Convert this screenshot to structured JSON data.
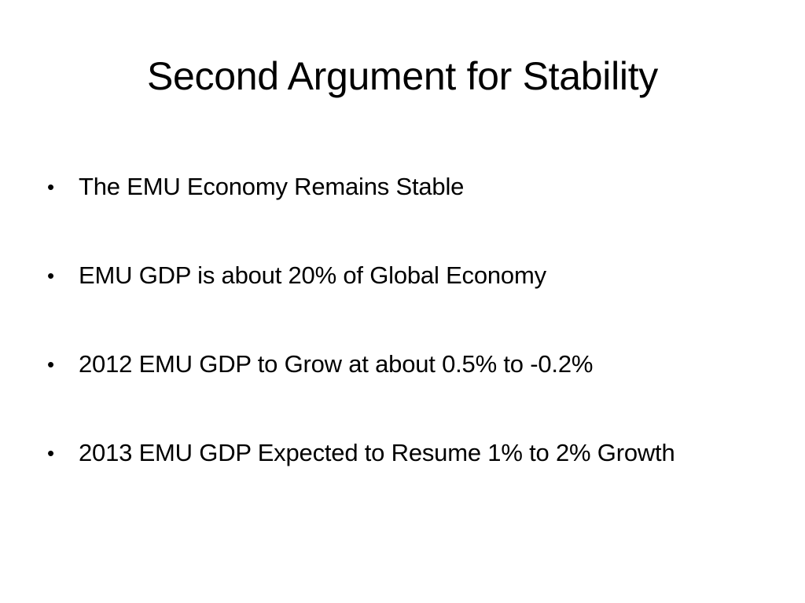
{
  "slide": {
    "title": "Second Argument for Stability",
    "bullet_symbol": "•",
    "bullets": [
      "The EMU Economy Remains Stable",
      "EMU GDP is about 20% of Global Economy",
      "2012 EMU GDP to Grow at about 0.5% to -0.2%",
      "2013 EMU GDP Expected to Resume 1% to 2% Growth"
    ]
  }
}
